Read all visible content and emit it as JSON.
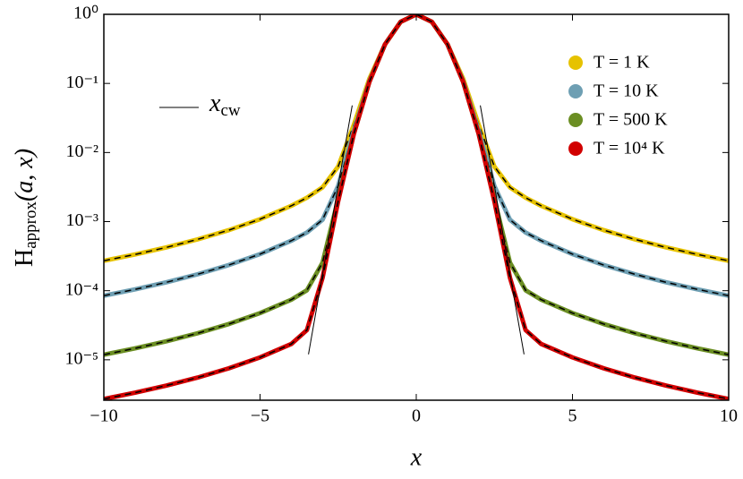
{
  "chart_data": {
    "type": "line",
    "xlabel": "x",
    "ylabel": {
      "main": "H",
      "sub": "approx",
      "rest": "(a, x)"
    },
    "x": [
      -10,
      -9,
      -8,
      -7,
      -6,
      -5,
      -4,
      -3.5,
      -3,
      -2.5,
      -2,
      -1.5,
      -1,
      -0.5,
      0,
      0.5,
      1,
      1.5,
      2,
      2.5,
      3,
      3.5,
      4,
      5,
      6,
      7,
      8,
      9,
      10
    ],
    "series": [
      {
        "name": "T = 1 K",
        "color": "#e6c200",
        "values": [
          0.0002708,
          0.0003343,
          0.0004231,
          0.0005527,
          0.0007522,
          0.001083,
          0.001693,
          0.002216,
          0.003132,
          0.006263,
          0.02509,
          0.1174,
          0.3679,
          0.7788,
          1,
          0.7788,
          0.3679,
          0.1174,
          0.02509,
          0.006263,
          0.003132,
          0.002216,
          0.001693,
          0.001083,
          0.0007522,
          0.0005527,
          0.0004231,
          0.0003343,
          0.0002708
        ]
      },
      {
        "name": "T = 10 K",
        "color": "#6e9fb3",
        "values": [
          8.463e-05,
          0.0001045,
          0.0001322,
          0.0001727,
          0.0002351,
          0.0003385,
          0.0005289,
          0.0006956,
          0.001064,
          0.003284,
          0.02044,
          0.1092,
          0.3679,
          0.7788,
          1,
          0.7788,
          0.3679,
          0.1092,
          0.02044,
          0.003284,
          0.001064,
          0.0006956,
          0.0005289,
          0.0003385,
          0.0002351,
          0.0001727,
          0.0001322,
          0.0001045,
          8.463e-05
        ]
      },
      {
        "name": "T = 500 K",
        "color": "#6b8e23",
        "values": [
          1.185e-05,
          1.463e-05,
          1.852e-05,
          2.418e-05,
          3.292e-05,
          4.74e-05,
          7.406e-05,
          0.0001015,
          0.0002551,
          0.00212,
          0.01862,
          0.1059,
          0.3679,
          0.7788,
          1,
          0.7788,
          0.3679,
          0.1059,
          0.01862,
          0.00212,
          0.0002551,
          0.0001015,
          7.406e-05,
          4.74e-05,
          3.292e-05,
          2.418e-05,
          1.852e-05,
          1.463e-05,
          1.185e-05
        ]
      },
      {
        "name": "T = 10⁴ K",
        "color": "#d10000",
        "values": [
          2.708e-06,
          3.343e-06,
          4.231e-06,
          5.527e-06,
          7.522e-06,
          1.083e-05,
          1.693e-05,
          2.69e-05,
          0.0001535,
          0.00197,
          0.01839,
          0.1055,
          0.3679,
          0.7788,
          1,
          0.7788,
          0.3679,
          0.1055,
          0.01839,
          0.00197,
          0.0001535,
          2.69e-05,
          1.693e-05,
          1.083e-05,
          7.522e-06,
          5.527e-06,
          4.231e-06,
          3.343e-06,
          2.708e-06
        ]
      }
    ],
    "xcw": {
      "name": "x",
      "sub": "cw",
      "color": "#000000",
      "lines": [
        {
          "x": [
            -2.05,
            -3.45
          ],
          "y": [
            0.048,
            1.2e-05
          ]
        },
        {
          "x": [
            2.05,
            3.45
          ],
          "y": [
            0.048,
            1.2e-05
          ]
        }
      ]
    },
    "xlim": [
      -10,
      10
    ],
    "xticks": [
      {
        "value": -10,
        "label": "−10"
      },
      {
        "value": -5,
        "label": "−5"
      },
      0,
      5,
      10
    ],
    "ylim": [
      2.6e-06,
      1
    ],
    "log_y": true,
    "yticks": [
      {
        "value": 1,
        "label": "10⁰"
      },
      {
        "value": 0.1,
        "label": "10⁻¹"
      },
      {
        "value": 0.01,
        "label": "10⁻²"
      },
      {
        "value": 0.001,
        "label": "10⁻³"
      },
      {
        "value": 0.0001,
        "label": "10⁻⁴"
      },
      {
        "value": 1e-05,
        "label": "10⁻⁵"
      }
    ],
    "legend": "upper right"
  }
}
